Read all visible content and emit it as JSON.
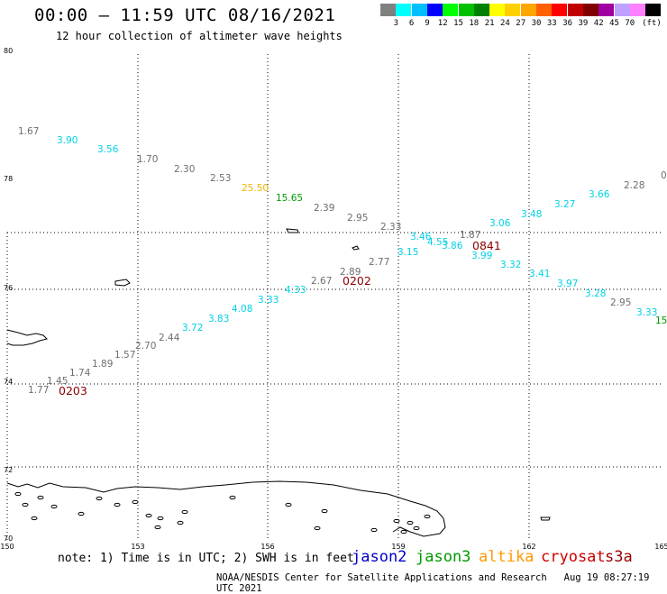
{
  "header": {
    "title": "00:00 – 11:59 UTC 08/16/2021",
    "subtitle": "12 hour collection of altimeter wave heights"
  },
  "colorbar": {
    "colors": [
      "#808080",
      "#00ffff",
      "#00bfff",
      "#0000ff",
      "#00ff00",
      "#00c000",
      "#008000",
      "#ffff00",
      "#ffd000",
      "#ffa500",
      "#ff6000",
      "#ff0000",
      "#c00000",
      "#800000",
      "#a000a0",
      "#c0a0ff",
      "#ff80ff",
      "#000000"
    ],
    "labels": [
      "3",
      "6",
      "9",
      "12",
      "15",
      "18",
      "21",
      "24",
      "27",
      "30",
      "33",
      "36",
      "39",
      "42",
      "45",
      "70",
      "(ft)"
    ]
  },
  "map": {
    "lon_ticks": [
      "150",
      "153",
      "156",
      "159",
      "162",
      "165"
    ],
    "lat_ticks": [
      "80",
      "78",
      "76",
      "74",
      "72",
      "70"
    ],
    "swh_labels": [
      {
        "text": "1.67",
        "color": "gray"
      },
      {
        "text": "3.90",
        "color": "cyan"
      },
      {
        "text": "3.56",
        "color": "cyan"
      },
      {
        "text": "1.70",
        "color": "gray"
      },
      {
        "text": "2.30",
        "color": "gray"
      },
      {
        "text": "2.53",
        "color": "gray"
      },
      {
        "text": "25.50",
        "color": "gold"
      },
      {
        "text": "15.65",
        "color": "green"
      },
      {
        "text": "2.39",
        "color": "gray"
      },
      {
        "text": "2.95",
        "color": "gray"
      },
      {
        "text": "2.33",
        "color": "gray"
      },
      {
        "text": "3.46",
        "color": "cyan"
      },
      {
        "text": "4.55",
        "color": "cyan"
      },
      {
        "text": "3.86",
        "color": "cyan"
      },
      {
        "text": "1.87",
        "color": "gray"
      },
      {
        "text": "3.06",
        "color": "cyan"
      },
      {
        "text": "3.48",
        "color": "cyan"
      },
      {
        "text": "3.27",
        "color": "cyan"
      },
      {
        "text": "3.66",
        "color": "cyan"
      },
      {
        "text": "2.28",
        "color": "gray"
      },
      {
        "text": "0",
        "color": "gray"
      },
      {
        "text": "3.15",
        "color": "cyan"
      },
      {
        "text": "3.99",
        "color": "cyan"
      },
      {
        "text": "3.32",
        "color": "cyan"
      },
      {
        "text": "3.41",
        "color": "cyan"
      },
      {
        "text": "3.97",
        "color": "cyan"
      },
      {
        "text": "3.28",
        "color": "cyan"
      },
      {
        "text": "2.95",
        "color": "gray"
      },
      {
        "text": "3.33",
        "color": "cyan"
      },
      {
        "text": "15",
        "color": "green"
      },
      {
        "text": "2.77",
        "color": "gray"
      },
      {
        "text": "2.89",
        "color": "gray"
      },
      {
        "text": "2.67",
        "color": "gray"
      },
      {
        "text": "4.33",
        "color": "cyan"
      },
      {
        "text": "3.33",
        "color": "cyan"
      },
      {
        "text": "4.08",
        "color": "cyan"
      },
      {
        "text": "3.83",
        "color": "cyan"
      },
      {
        "text": "3.72",
        "color": "cyan"
      },
      {
        "text": "2.44",
        "color": "gray"
      },
      {
        "text": "2.70",
        "color": "gray"
      },
      {
        "text": "1.57",
        "color": "gray"
      },
      {
        "text": "1.89",
        "color": "gray"
      },
      {
        "text": "1.74",
        "color": "gray"
      },
      {
        "text": "1.45",
        "color": "gray"
      },
      {
        "text": "1.77",
        "color": "gray"
      }
    ],
    "pass_labels": [
      "0841",
      "0202",
      "0203"
    ]
  },
  "footer": {
    "note": "note: 1) Time is in UTC; 2) SWH is in feet",
    "satellites": [
      {
        "name": "jason2",
        "color": "#0000cc"
      },
      {
        "name": "jason3",
        "color": "#009900"
      },
      {
        "name": "altika",
        "color": "#ff9900"
      },
      {
        "name": "cryosat",
        "color": "#cc0000"
      },
      {
        "name": "s3a",
        "color": "#990000"
      }
    ],
    "credit": "NOAA/NESDIS Center for Satellite Applications and Research",
    "timestamp": "Aug 19 08:27:19 UTC 2021"
  }
}
